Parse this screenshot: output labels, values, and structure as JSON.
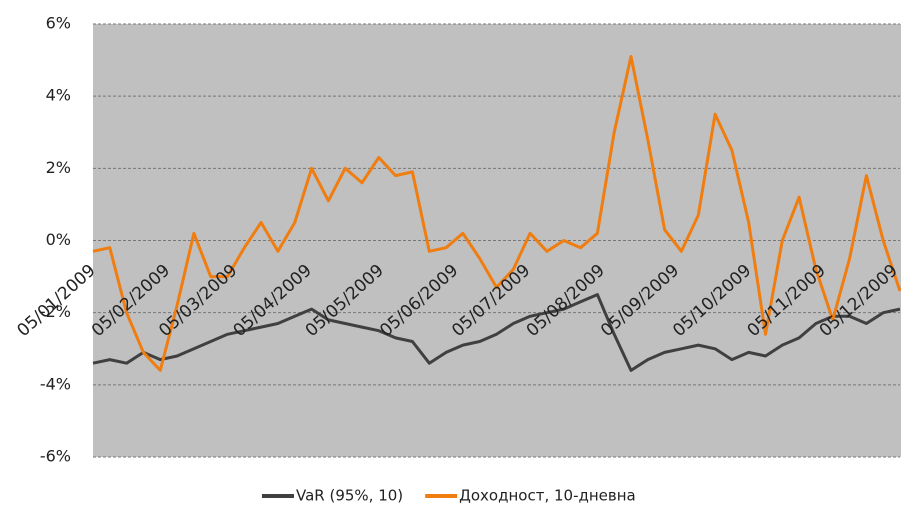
{
  "chart_data": {
    "type": "line",
    "x": [
      "05/01/2009",
      "12/01/2009",
      "19/01/2009",
      "26/01/2009",
      "02/02/2009",
      "09/02/2009",
      "16/02/2009",
      "23/02/2009",
      "02/03/2009",
      "09/03/2009",
      "16/03/2009",
      "23/03/2009",
      "30/03/2009",
      "06/04/2009",
      "13/04/2009",
      "20/04/2009",
      "27/04/2009",
      "04/05/2009",
      "11/05/2009",
      "18/05/2009",
      "25/05/2009",
      "01/06/2009",
      "08/06/2009",
      "15/06/2009",
      "22/06/2009",
      "29/06/2009",
      "06/07/2009",
      "13/07/2009",
      "20/07/2009",
      "27/07/2009",
      "03/08/2009",
      "10/08/2009",
      "17/08/2009",
      "24/08/2009",
      "31/08/2009",
      "07/09/2009",
      "14/09/2009",
      "21/09/2009",
      "28/09/2009",
      "05/10/2009",
      "12/10/2009",
      "19/10/2009",
      "26/10/2009",
      "02/11/2009",
      "09/11/2009",
      "16/11/2009",
      "23/11/2009",
      "30/11/2009",
      "07/12/2009"
    ],
    "series": [
      {
        "name": "VaR (95%, 10)",
        "color": "#404040",
        "values": [
          -3.4,
          -3.3,
          -3.4,
          -3.1,
          -3.3,
          -3.2,
          -3.0,
          -2.8,
          -2.6,
          -2.5,
          -2.4,
          -2.3,
          -2.1,
          -1.9,
          -2.2,
          -2.3,
          -2.4,
          -2.5,
          -2.7,
          -2.8,
          -3.4,
          -3.1,
          -2.9,
          -2.8,
          -2.6,
          -2.3,
          -2.1,
          -2.0,
          -1.9,
          -1.7,
          -1.5,
          -2.6,
          -3.6,
          -3.3,
          -3.1,
          -3.0,
          -2.9,
          -3.0,
          -3.3,
          -3.1,
          -3.2,
          -2.9,
          -2.7,
          -2.3,
          -2.1,
          -2.1,
          -2.3,
          -2.0,
          -1.9
        ]
      },
      {
        "name": "Доходност, 10-дневна",
        "color": "#f07d10",
        "values": [
          -0.3,
          -0.2,
          -2.0,
          -3.1,
          -3.6,
          -1.8,
          0.2,
          -1.0,
          -1.0,
          -0.2,
          0.5,
          -0.3,
          0.5,
          2.0,
          1.1,
          2.0,
          1.6,
          2.3,
          1.8,
          1.9,
          -0.3,
          -0.2,
          0.2,
          -0.5,
          -1.3,
          -0.8,
          0.2,
          -0.3,
          0.0,
          -0.2,
          0.2,
          3.0,
          5.1,
          2.8,
          0.3,
          -0.3,
          0.7,
          3.5,
          2.5,
          0.5,
          -2.6,
          0.0,
          1.2,
          -0.8,
          -2.2,
          -0.5,
          1.8,
          0.0,
          -1.4
        ]
      }
    ],
    "xlim": [
      "05/01/2009",
      "07/12/2009"
    ],
    "xticks": [
      "05/01/2009",
      "05/02/2009",
      "05/03/2009",
      "05/04/2009",
      "05/05/2009",
      "05/06/2009",
      "05/07/2009",
      "05/08/2009",
      "05/09/2009",
      "05/10/2009",
      "05/11/2009",
      "05/12/2009"
    ],
    "ylim": [
      -6,
      6
    ],
    "yticks": [
      {
        "value": -6,
        "label": "-6%"
      },
      {
        "value": -4,
        "label": "-4%"
      },
      {
        "value": -2,
        "label": "-2%"
      },
      {
        "value": 0,
        "label": "0%"
      },
      {
        "value": 2,
        "label": "2%"
      },
      {
        "value": 4,
        "label": "4%"
      },
      {
        "value": 6,
        "label": "6%"
      }
    ],
    "grid": true,
    "legend": "bottom"
  }
}
